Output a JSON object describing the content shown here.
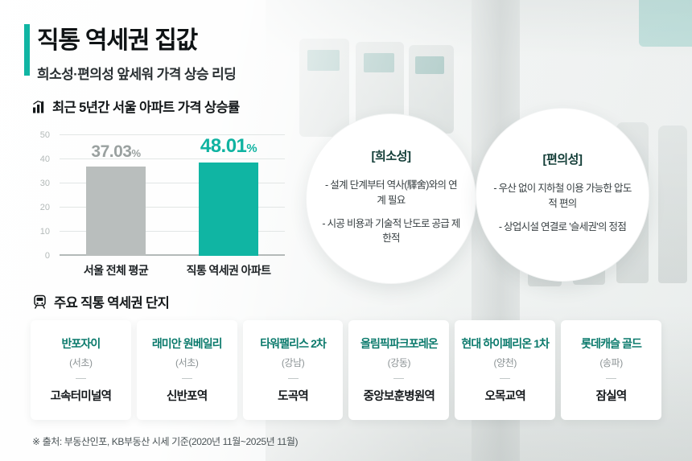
{
  "header": {
    "title": "직통 역세권 집값",
    "subtitle": "희소성·편의성 앞세워 가격 상승 리딩"
  },
  "chart_data": {
    "type": "bar",
    "title": "최근 5년간 서울 아파트 가격 상승률",
    "categories": [
      "서울 전체 평균",
      "직통 역세권 아파트"
    ],
    "values": [
      37.03,
      48.01
    ],
    "value_labels": [
      {
        "value": "37.03",
        "unit": "%"
      },
      {
        "value": "48.01",
        "unit": "%"
      }
    ],
    "ylim": [
      0,
      50
    ],
    "y_ticks": [
      "50",
      "40",
      "30",
      "20",
      "10",
      "0"
    ],
    "grid": true,
    "legend": "none",
    "bar_colors": [
      "#b9bebd",
      "#10b5a3"
    ],
    "value_colors": [
      "#9aa1a0",
      "#0fb3a1"
    ]
  },
  "bubbles": [
    {
      "title": "[희소성]",
      "points": [
        "- 설계 단계부터 역사(驛舍)와의 연계 필요",
        "- 시공 비용과 기술적 난도로 공급 제한적"
      ]
    },
    {
      "title": "[편의성]",
      "points": [
        "- 우산 없이 지하철 이용 가능한 압도적 편의",
        "- 상업시설 연결로 '슬세권'의 정점"
      ]
    }
  ],
  "complexes": {
    "heading": "주요 직통 역세권 단지",
    "cards": [
      {
        "name": "반포자이",
        "district": "(서초)",
        "station": "고속터미널역"
      },
      {
        "name": "래미안 원베일리",
        "district": "(서초)",
        "station": "신반포역"
      },
      {
        "name": "타워팰리스 2차",
        "district": "(강남)",
        "station": "도곡역"
      },
      {
        "name": "올림픽파크포레온",
        "district": "(강동)",
        "station": "중앙보훈병원역"
      },
      {
        "name": "현대 하이페리온 1차",
        "district": "(양천)",
        "station": "오목교역"
      },
      {
        "name": "롯데캐슬 골드",
        "district": "(송파)",
        "station": "잠실역"
      }
    ]
  },
  "footer": {
    "source": "※ 출처: 부동산인포, KB부동산 시세 기준(2020년 11월~2025년 11월)"
  },
  "icons": {
    "chart": "bar-chart-icon",
    "complexes": "subway-icon"
  },
  "colors": {
    "accent": "#10b5a3",
    "gray_bar": "#b9bebd",
    "card_name": "#0b7a6c"
  }
}
